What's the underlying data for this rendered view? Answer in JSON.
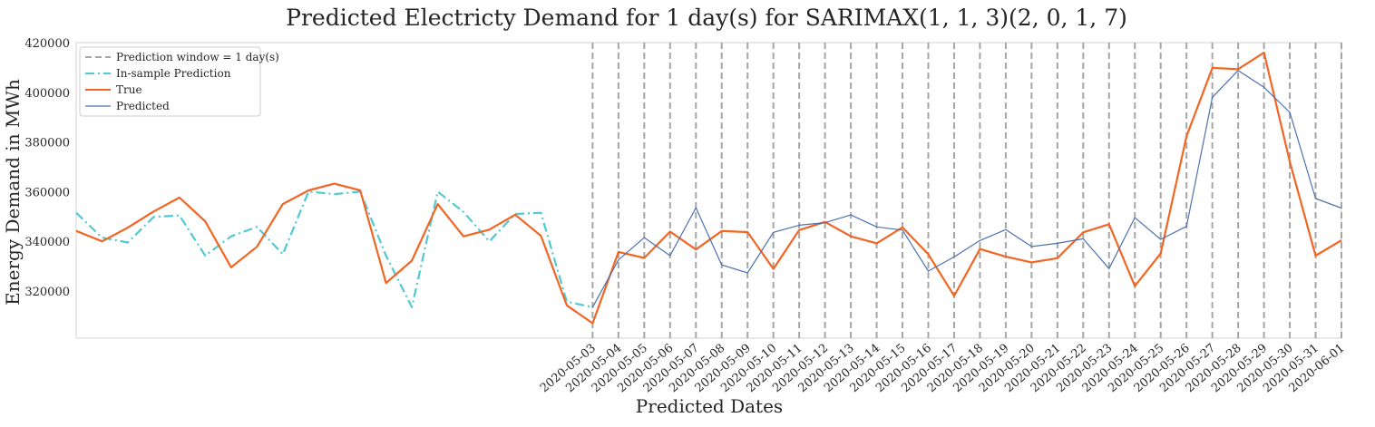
{
  "chart_data": {
    "type": "line",
    "title": "Predicted Electricty Demand for 1 day(s) for SARIMAX(1, 1, 3)(2, 0, 1, 7)",
    "xlabel": "Predicted Dates",
    "ylabel": "Energy Demand in MWh",
    "ylim": [
      301000,
      420000
    ],
    "yticks": [
      320000,
      340000,
      360000,
      380000,
      400000,
      420000
    ],
    "grid": false,
    "legend_position": "top-left",
    "in_sample_dates": [
      "2020-04-13",
      "2020-04-14",
      "2020-04-15",
      "2020-04-16",
      "2020-04-17",
      "2020-04-18",
      "2020-04-19",
      "2020-04-20",
      "2020-04-21",
      "2020-04-22",
      "2020-04-23",
      "2020-04-24",
      "2020-04-25",
      "2020-04-26",
      "2020-04-27",
      "2020-04-28",
      "2020-04-29",
      "2020-04-30",
      "2020-05-01",
      "2020-05-02"
    ],
    "xticks": [
      "2020-05-03",
      "2020-05-04",
      "2020-05-05",
      "2020-05-06",
      "2020-05-07",
      "2020-05-08",
      "2020-05-09",
      "2020-05-10",
      "2020-05-11",
      "2020-05-12",
      "2020-05-13",
      "2020-05-14",
      "2020-05-15",
      "2020-05-16",
      "2020-05-17",
      "2020-05-18",
      "2020-05-19",
      "2020-05-20",
      "2020-05-21",
      "2020-05-22",
      "2020-05-23",
      "2020-05-24",
      "2020-05-25",
      "2020-05-26",
      "2020-05-27",
      "2020-05-28",
      "2020-05-29",
      "2020-05-30",
      "2020-05-31",
      "2020-06-01"
    ],
    "prediction_window_lines": [
      "2020-05-03",
      "2020-05-04",
      "2020-05-05",
      "2020-05-06",
      "2020-05-07",
      "2020-05-08",
      "2020-05-09",
      "2020-05-10",
      "2020-05-11",
      "2020-05-12",
      "2020-05-13",
      "2020-05-14",
      "2020-05-15",
      "2020-05-16",
      "2020-05-17",
      "2020-05-18",
      "2020-05-19",
      "2020-05-20",
      "2020-05-21",
      "2020-05-22",
      "2020-05-23",
      "2020-05-24",
      "2020-05-25",
      "2020-05-26",
      "2020-05-27",
      "2020-05-28",
      "2020-05-29",
      "2020-05-30",
      "2020-05-31",
      "2020-06-01"
    ],
    "series": [
      {
        "name": "Prediction window = 1 day(s)",
        "style": "dashed",
        "color": "#a6a6a6"
      },
      {
        "name": "In-sample Prediction",
        "style": "dashdot",
        "color": "#4fc9d4",
        "x": [
          "2020-04-13",
          "2020-04-14",
          "2020-04-15",
          "2020-04-16",
          "2020-04-17",
          "2020-04-18",
          "2020-04-19",
          "2020-04-20",
          "2020-04-21",
          "2020-04-22",
          "2020-04-23",
          "2020-04-24",
          "2020-04-25",
          "2020-04-26",
          "2020-04-27",
          "2020-04-28",
          "2020-04-29",
          "2020-04-30",
          "2020-05-01",
          "2020-05-02",
          "2020-05-03"
        ],
        "values": [
          351500,
          341500,
          339500,
          349800,
          350400,
          334200,
          342000,
          345800,
          334800,
          360000,
          359000,
          360000,
          334200,
          313500,
          360000,
          351800,
          340000,
          351000,
          351500,
          315700,
          313500
        ]
      },
      {
        "name": "True",
        "style": "solid",
        "color": "#f26522",
        "x": [
          "2020-04-13",
          "2020-04-14",
          "2020-04-15",
          "2020-04-16",
          "2020-04-17",
          "2020-04-18",
          "2020-04-19",
          "2020-04-20",
          "2020-04-21",
          "2020-04-22",
          "2020-04-23",
          "2020-04-24",
          "2020-04-25",
          "2020-04-26",
          "2020-04-27",
          "2020-04-28",
          "2020-04-29",
          "2020-04-30",
          "2020-05-01",
          "2020-05-02",
          "2020-05-03",
          "2020-05-04",
          "2020-05-05",
          "2020-05-06",
          "2020-05-07",
          "2020-05-08",
          "2020-05-09",
          "2020-05-10",
          "2020-05-11",
          "2020-05-12",
          "2020-05-13",
          "2020-05-14",
          "2020-05-15",
          "2020-05-16",
          "2020-05-17",
          "2020-05-18",
          "2020-05-19",
          "2020-05-20",
          "2020-05-21",
          "2020-05-22",
          "2020-05-23",
          "2020-05-24",
          "2020-05-25",
          "2020-05-26",
          "2020-05-27",
          "2020-05-28",
          "2020-05-29",
          "2020-05-30",
          "2020-05-31",
          "2020-06-01"
        ],
        "values": [
          344200,
          340000,
          345500,
          352000,
          357600,
          348000,
          329500,
          337800,
          355000,
          360500,
          363200,
          360500,
          323200,
          332200,
          355000,
          342000,
          344700,
          350700,
          342200,
          314200,
          307000,
          335700,
          333300,
          343900,
          336700,
          344100,
          343700,
          328900,
          344500,
          347800,
          342000,
          339200,
          345600,
          334800,
          318000,
          336900,
          333800,
          331500,
          333200,
          343600,
          346900,
          322000,
          335100,
          382300,
          409800,
          409300,
          416000,
          372000,
          334200,
          340400
        ]
      },
      {
        "name": "Predicted",
        "style": "solid",
        "color": "#4c72b0",
        "x": [
          "2020-05-03",
          "2020-05-04",
          "2020-05-05",
          "2020-05-06",
          "2020-05-07",
          "2020-05-08",
          "2020-05-09",
          "2020-05-10",
          "2020-05-11",
          "2020-05-12",
          "2020-05-13",
          "2020-05-14",
          "2020-05-15",
          "2020-05-16",
          "2020-05-17",
          "2020-05-18",
          "2020-05-19",
          "2020-05-20",
          "2020-05-21",
          "2020-05-22",
          "2020-05-23",
          "2020-05-24",
          "2020-05-25",
          "2020-05-26",
          "2020-05-27",
          "2020-05-28",
          "2020-05-29",
          "2020-05-30",
          "2020-05-31",
          "2020-06-01"
        ],
        "values": [
          313500,
          332500,
          341500,
          334200,
          353500,
          330500,
          327300,
          343600,
          346500,
          347500,
          350600,
          345800,
          344500,
          328000,
          333700,
          340300,
          344700,
          337900,
          339200,
          341000,
          329000,
          349500,
          340800,
          346000,
          398000,
          408800,
          402000,
          391900,
          357200,
          353400
        ]
      }
    ]
  }
}
